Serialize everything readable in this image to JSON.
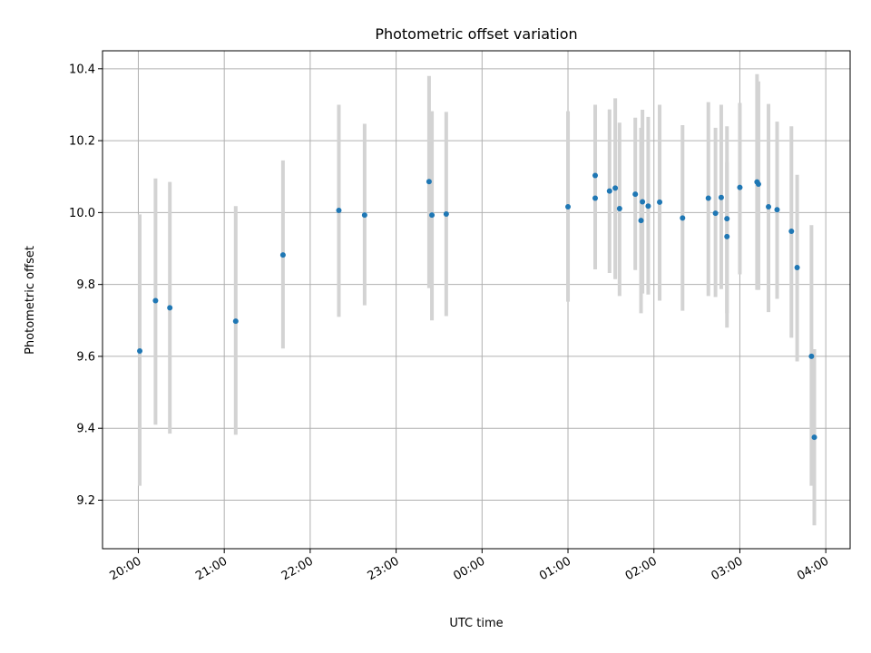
{
  "chart_data": {
    "type": "scatter",
    "title": "Photometric offset variation",
    "xlabel": "UTC time",
    "ylabel": "Photometric offset",
    "grid": true,
    "ylim": [
      9.065,
      10.45
    ],
    "xlim": [
      "19:35",
      "04:17"
    ],
    "x_tick_labels": [
      "20:00",
      "21:00",
      "22:00",
      "23:00",
      "00:00",
      "01:00",
      "02:00",
      "03:00",
      "04:00"
    ],
    "y_tick_labels": [
      "9.2",
      "9.4",
      "9.6",
      "9.8",
      "10.0",
      "10.2",
      "10.4"
    ],
    "y_ticks": [
      9.2,
      9.4,
      9.6,
      9.8,
      10.0,
      10.2,
      10.4
    ],
    "colors": {
      "point": "#1f77b4",
      "errorbar": "#d3d3d3",
      "grid": "#b0b0b0"
    },
    "series": [
      {
        "x": [
          "20:01",
          "20:12",
          "20:22",
          "21:08",
          "21:41",
          "22:20",
          "22:38",
          "23:23",
          "23:25",
          "23:35",
          "01:00",
          "01:19",
          "01:19",
          "01:29",
          "01:33",
          "01:36",
          "01:47",
          "01:51",
          "01:52",
          "01:56",
          "02:04",
          "02:20",
          "02:38",
          "02:43",
          "02:47",
          "02:51",
          "02:51",
          "03:00",
          "03:12",
          "03:13",
          "03:20",
          "03:26",
          "03:36",
          "03:40",
          "03:50",
          "03:52"
        ],
        "y": [
          9.615,
          9.755,
          9.735,
          9.698,
          9.882,
          10.006,
          9.993,
          10.086,
          9.993,
          9.996,
          10.016,
          10.103,
          10.04,
          10.06,
          10.068,
          10.011,
          10.051,
          9.978,
          10.03,
          10.018,
          10.029,
          9.985,
          10.04,
          9.998,
          10.042,
          9.983,
          9.933,
          10.07,
          10.085,
          10.079,
          10.016,
          10.008,
          9.948,
          9.847,
          9.6,
          9.375
        ],
        "yerr_low": [
          9.24,
          9.41,
          9.385,
          9.382,
          9.622,
          9.71,
          9.742,
          9.79,
          9.7,
          9.712,
          9.752,
          9.905,
          9.842,
          9.832,
          9.815,
          9.768,
          9.84,
          9.72,
          9.775,
          9.772,
          9.755,
          9.727,
          9.768,
          9.765,
          9.787,
          9.68,
          9.72,
          9.828,
          9.785,
          9.785,
          9.723,
          9.76,
          9.652,
          9.586,
          9.24,
          9.13
        ],
        "yerr_high": [
          9.995,
          10.095,
          10.085,
          10.018,
          10.145,
          10.3,
          10.247,
          10.38,
          10.282,
          10.28,
          10.282,
          10.3,
          10.234,
          10.287,
          10.318,
          10.25,
          10.264,
          10.236,
          10.286,
          10.266,
          10.3,
          10.243,
          10.307,
          10.236,
          10.3,
          10.24,
          10.14,
          10.305,
          10.385,
          10.365,
          10.302,
          10.253,
          10.24,
          10.105,
          9.965,
          9.62
        ]
      }
    ]
  }
}
